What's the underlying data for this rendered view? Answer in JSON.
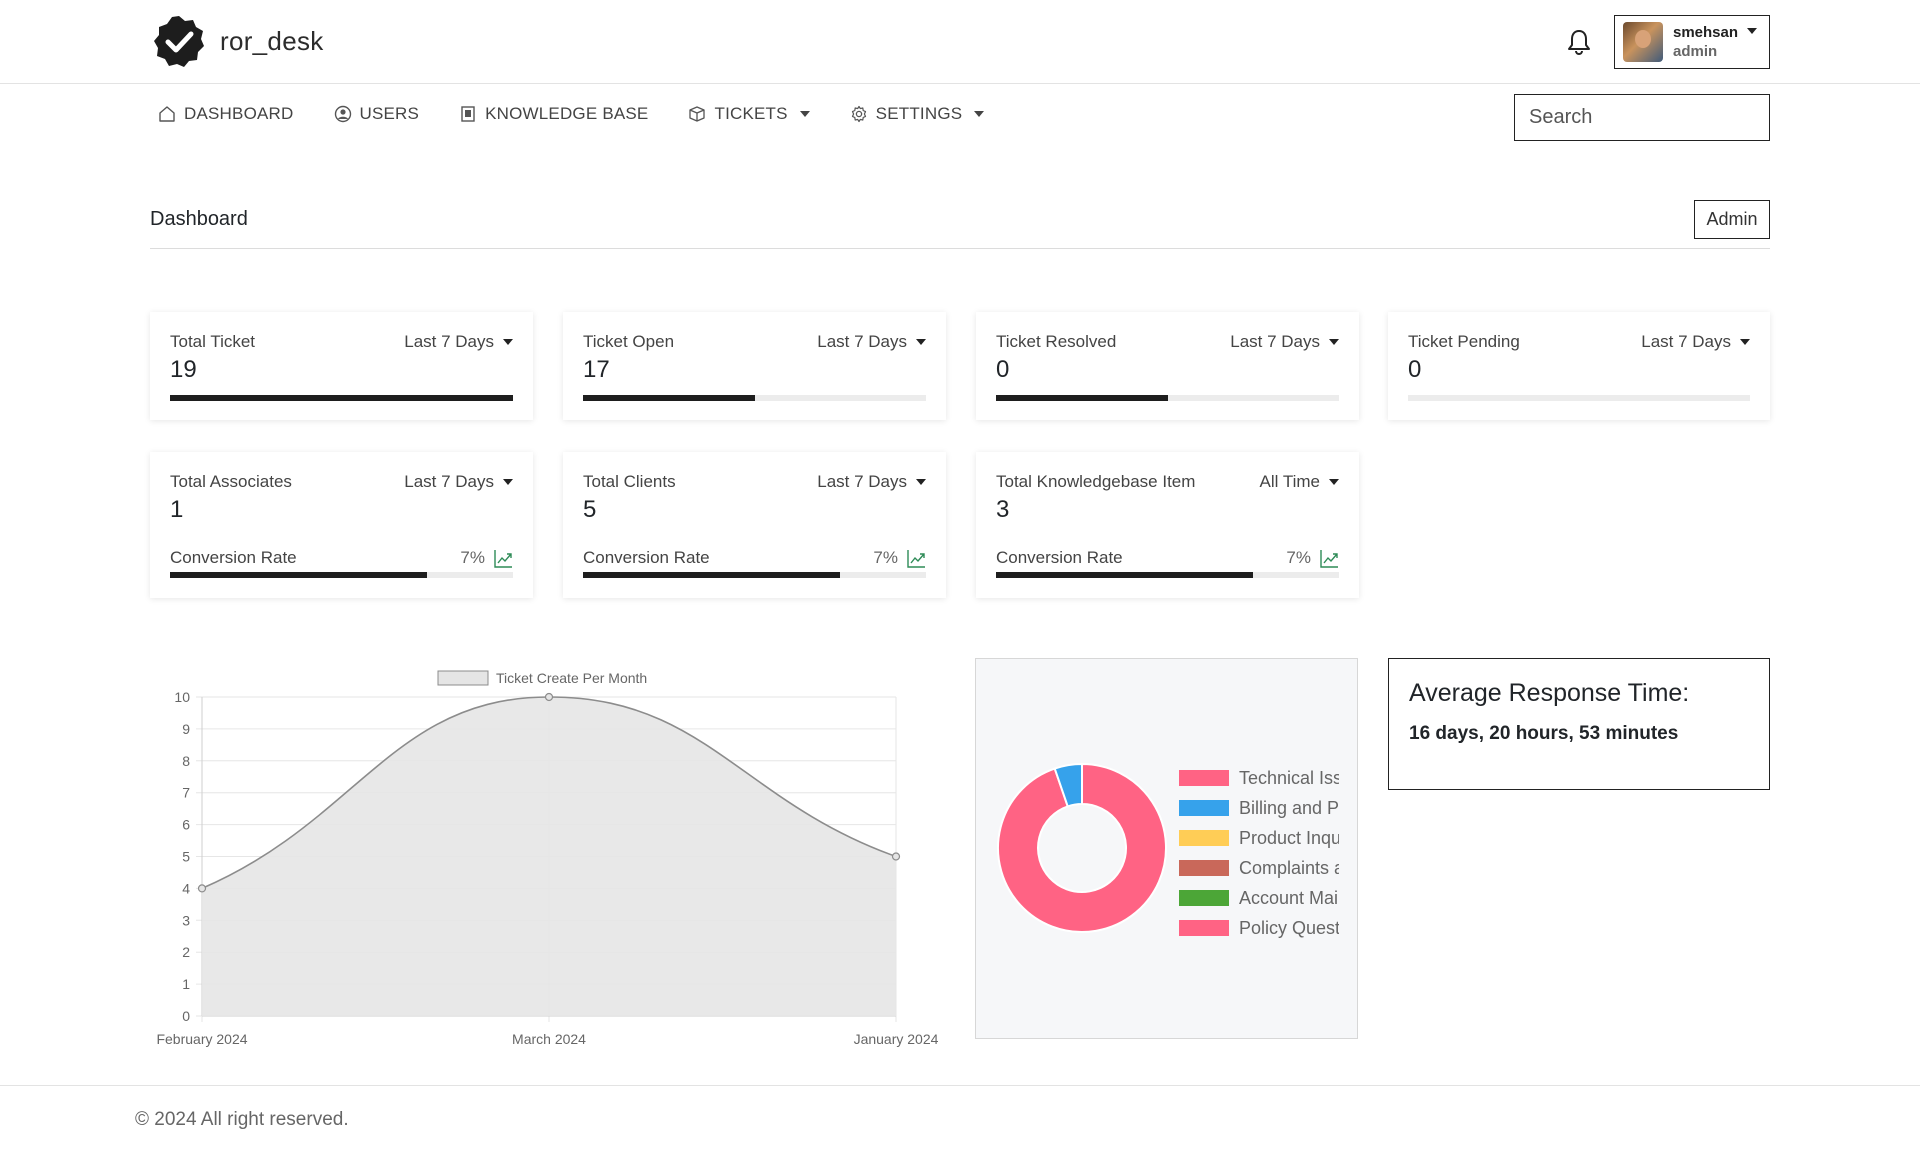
{
  "app": {
    "name": "ror_desk"
  },
  "user": {
    "name": "smehsan",
    "role": "admin"
  },
  "nav": {
    "items": [
      {
        "label": "DASHBOARD",
        "icon": "home-icon",
        "has_dropdown": false
      },
      {
        "label": "USERS",
        "icon": "user-circle-icon",
        "has_dropdown": false
      },
      {
        "label": "KNOWLEDGE BASE",
        "icon": "book-icon",
        "has_dropdown": false
      },
      {
        "label": "TICKETS",
        "icon": "box-icon",
        "has_dropdown": true
      },
      {
        "label": "SETTINGS",
        "icon": "gear-icon",
        "has_dropdown": true
      }
    ],
    "search_placeholder": "Search"
  },
  "page": {
    "title": "Dashboard",
    "role_button": "Admin"
  },
  "stats_row1": [
    {
      "label": "Total Ticket",
      "filter": "Last 7 Days",
      "value": "19",
      "progress": 1.0
    },
    {
      "label": "Ticket Open",
      "filter": "Last 7 Days",
      "value": "17",
      "progress": 0.5
    },
    {
      "label": "Ticket Resolved",
      "filter": "Last 7 Days",
      "value": "0",
      "progress": 0.5
    },
    {
      "label": "Ticket Pending",
      "filter": "Last 7 Days",
      "value": "0",
      "progress": 0.0
    }
  ],
  "stats_row2": [
    {
      "label": "Total Associates",
      "filter": "Last 7 Days",
      "value": "1",
      "conversion_label": "Conversion Rate",
      "conversion_rate": "7%",
      "progress": 0.75
    },
    {
      "label": "Total Clients",
      "filter": "Last 7 Days",
      "value": "5",
      "conversion_label": "Conversion Rate",
      "conversion_rate": "7%",
      "progress": 0.75
    },
    {
      "label": "Total Knowledgebase Item",
      "filter": "All Time",
      "value": "3",
      "conversion_label": "Conversion Rate",
      "conversion_rate": "7%",
      "progress": 0.75
    }
  ],
  "chart_data": [
    {
      "type": "area",
      "title": "",
      "legend": "Ticket Create Per Month",
      "categories": [
        "February 2024",
        "March 2024",
        "January 2024"
      ],
      "values": [
        4,
        10,
        5
      ],
      "ylim": [
        0,
        10
      ],
      "yticks": [
        "0",
        "1",
        "2",
        "3",
        "4",
        "5",
        "6",
        "7",
        "8",
        "9",
        "10"
      ],
      "xlabel": "",
      "ylabel": "",
      "grid": true,
      "colors": {
        "fill": "#e5e5e5",
        "line": "#8c8c8c"
      }
    },
    {
      "type": "pie",
      "variant": "doughnut",
      "legend_position": "right",
      "labels": [
        "Technical Iss",
        "Billing and P",
        "Product Inqu",
        "Complaints a",
        "Account Mai",
        "Policy Quest"
      ],
      "values": [
        18,
        1,
        0,
        0,
        0,
        0
      ],
      "colors": [
        "#ff6384",
        "#36a2eb",
        "#ffcd56",
        "#c9685a",
        "#4ca637",
        "#ff6384"
      ]
    }
  ],
  "response_time": {
    "title": "Average Response Time:",
    "value": "16 days, 20 hours, 53 minutes"
  },
  "footer": {
    "text": "© 2024 All right reserved."
  }
}
